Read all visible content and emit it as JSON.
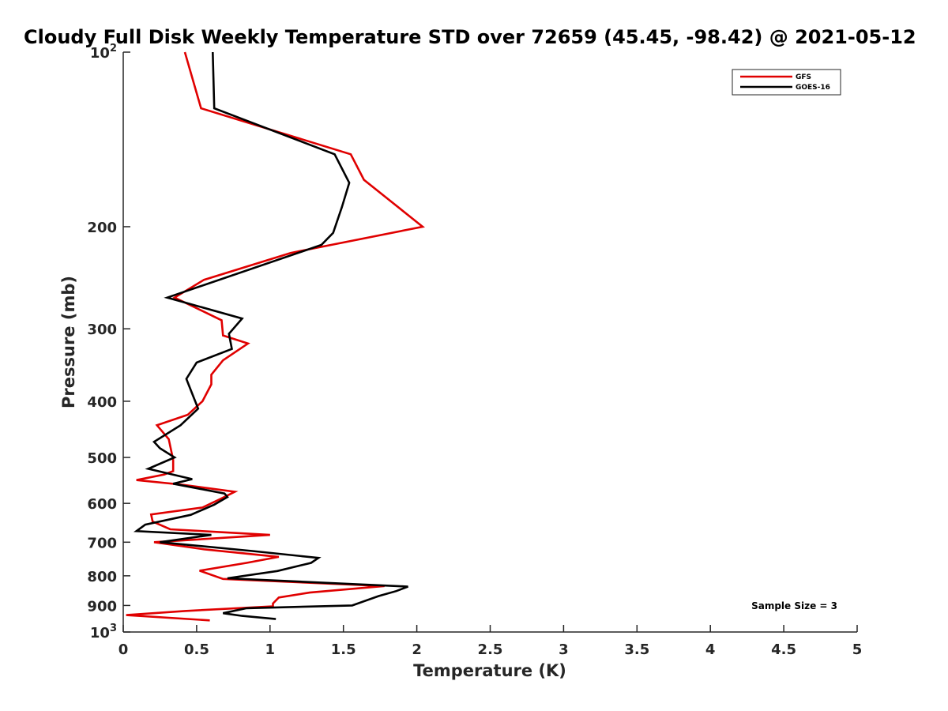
{
  "chart_data": {
    "type": "line",
    "title": "Cloudy Full Disk Weekly Temperature STD over 72659 (45.45, -98.42) @ 2021-05-12",
    "xlabel": "Temperature (K)",
    "ylabel": "Pressure (mb)",
    "xlim": [
      0,
      5
    ],
    "ylim": [
      1000,
      100
    ],
    "y_scale": "log",
    "y_reversed": true,
    "grid": false,
    "legend_position": "top-right",
    "x_ticks": [
      {
        "value": 0,
        "label": "0"
      },
      {
        "value": 0.5,
        "label": "0.5"
      },
      {
        "value": 1,
        "label": "1"
      },
      {
        "value": 1.5,
        "label": "1.5"
      },
      {
        "value": 2,
        "label": "2"
      },
      {
        "value": 2.5,
        "label": "2.5"
      },
      {
        "value": 3,
        "label": "3"
      },
      {
        "value": 3.5,
        "label": "3.5"
      },
      {
        "value": 4,
        "label": "4"
      },
      {
        "value": 4.5,
        "label": "4.5"
      },
      {
        "value": 5,
        "label": "5"
      }
    ],
    "y_ticks": [
      {
        "value": 100,
        "base": "10",
        "exp": "2"
      },
      {
        "value": 200,
        "base": "200",
        "exp": ""
      },
      {
        "value": 300,
        "base": "300",
        "exp": ""
      },
      {
        "value": 400,
        "base": "400",
        "exp": ""
      },
      {
        "value": 500,
        "base": "500",
        "exp": ""
      },
      {
        "value": 600,
        "base": "600",
        "exp": ""
      },
      {
        "value": 700,
        "base": "700",
        "exp": ""
      },
      {
        "value": 800,
        "base": "800",
        "exp": ""
      },
      {
        "value": 900,
        "base": "900",
        "exp": ""
      },
      {
        "value": 1000,
        "base": "10",
        "exp": "3"
      }
    ],
    "series": [
      {
        "name": "GFS",
        "color": "#e00000",
        "points": [
          [
            0.42,
            100
          ],
          [
            0.53,
            125
          ],
          [
            1.55,
            150
          ],
          [
            1.64,
            166
          ],
          [
            2.04,
            200
          ],
          [
            1.14,
            222
          ],
          [
            0.55,
            247
          ],
          [
            0.35,
            265
          ],
          [
            0.67,
            290
          ],
          [
            0.68,
            308
          ],
          [
            0.85,
            318
          ],
          [
            0.68,
            340
          ],
          [
            0.6,
            360
          ],
          [
            0.6,
            374
          ],
          [
            0.54,
            400
          ],
          [
            0.44,
            422
          ],
          [
            0.23,
            440
          ],
          [
            0.31,
            465
          ],
          [
            0.34,
            505
          ],
          [
            0.34,
            528
          ],
          [
            0.28,
            535
          ],
          [
            0.09,
            547
          ],
          [
            0.4,
            557
          ],
          [
            0.76,
            573
          ],
          [
            0.66,
            590
          ],
          [
            0.54,
            610
          ],
          [
            0.19,
            627
          ],
          [
            0.2,
            645
          ],
          [
            0.32,
            665
          ],
          [
            1.0,
            680
          ],
          [
            0.21,
            700
          ],
          [
            0.55,
            720
          ],
          [
            1.06,
            742
          ],
          [
            0.84,
            760
          ],
          [
            0.52,
            784
          ],
          [
            0.68,
            810
          ],
          [
            1.78,
            833
          ],
          [
            1.27,
            855
          ],
          [
            1.06,
            872
          ],
          [
            1.02,
            893
          ],
          [
            1.02,
            903
          ],
          [
            0.42,
            920
          ],
          [
            0.02,
            935
          ],
          [
            0.59,
            955
          ]
        ]
      },
      {
        "name": "GOES-16",
        "color": "#000000",
        "points": [
          [
            0.61,
            100
          ],
          [
            0.62,
            125
          ],
          [
            1.44,
            150
          ],
          [
            1.54,
            168
          ],
          [
            1.49,
            185
          ],
          [
            1.43,
            205
          ],
          [
            1.35,
            215
          ],
          [
            0.3,
            265
          ],
          [
            0.81,
            288
          ],
          [
            0.72,
            306
          ],
          [
            0.74,
            325
          ],
          [
            0.5,
            343
          ],
          [
            0.43,
            366
          ],
          [
            0.48,
            394
          ],
          [
            0.51,
            412
          ],
          [
            0.39,
            440
          ],
          [
            0.21,
            470
          ],
          [
            0.25,
            482
          ],
          [
            0.35,
            500
          ],
          [
            0.17,
            523
          ],
          [
            0.47,
            545
          ],
          [
            0.34,
            555
          ],
          [
            0.69,
            577
          ],
          [
            0.71,
            585
          ],
          [
            0.62,
            603
          ],
          [
            0.46,
            628
          ],
          [
            0.15,
            653
          ],
          [
            0.09,
            670
          ],
          [
            0.6,
            680
          ],
          [
            0.25,
            700
          ],
          [
            0.88,
            725
          ],
          [
            1.33,
            745
          ],
          [
            1.28,
            760
          ],
          [
            1.05,
            785
          ],
          [
            0.71,
            808
          ],
          [
            1.94,
            835
          ],
          [
            1.86,
            850
          ],
          [
            1.74,
            867
          ],
          [
            1.56,
            900
          ],
          [
            0.84,
            910
          ],
          [
            0.68,
            928
          ],
          [
            0.81,
            938
          ],
          [
            1.04,
            950
          ]
        ]
      }
    ],
    "annotations": [
      {
        "text": "Sample Size = 3",
        "position": "bottom-right"
      }
    ]
  }
}
